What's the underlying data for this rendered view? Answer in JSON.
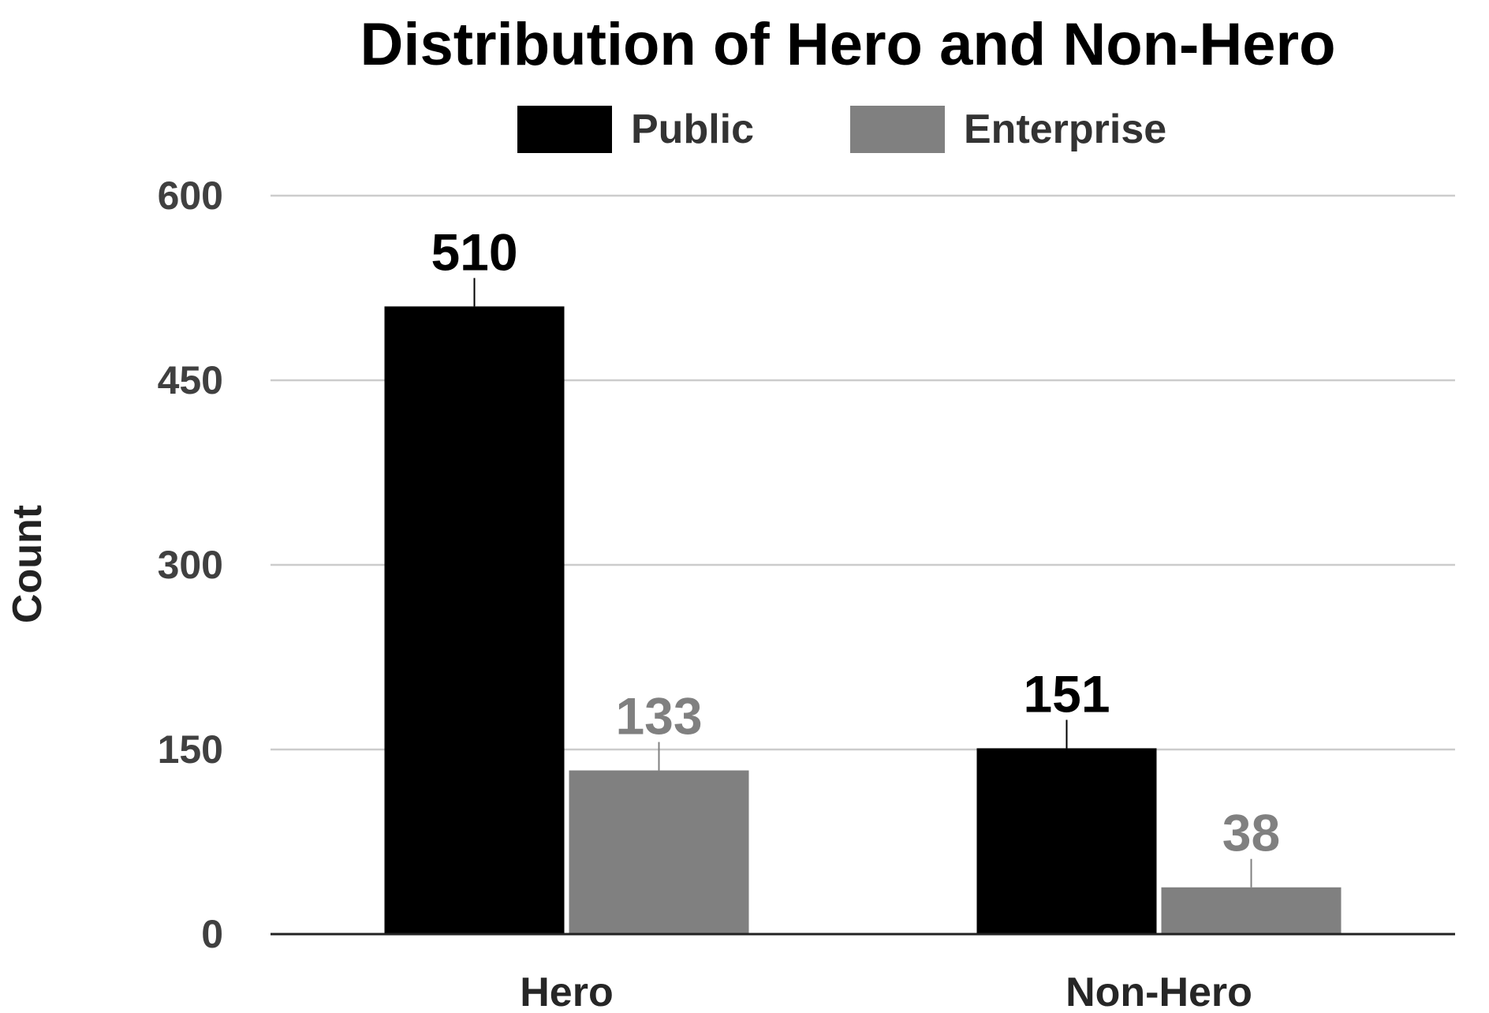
{
  "chart_data": {
    "type": "bar",
    "title": "Distribution of Hero and Non-Hero",
    "xlabel": "",
    "ylabel": "Count",
    "categories": [
      "Hero",
      "Non-Hero"
    ],
    "series": [
      {
        "name": "Public",
        "values": [
          510,
          151
        ],
        "color": "#000000",
        "label_color": "#000000"
      },
      {
        "name": "Enterprise",
        "values": [
          133,
          38
        ],
        "color": "#808080",
        "label_color": "#808080"
      }
    ],
    "ylim": [
      0,
      600
    ],
    "yticks": [
      "0",
      "150",
      "300",
      "450",
      "600"
    ],
    "grid": true,
    "legend_position": "top"
  }
}
